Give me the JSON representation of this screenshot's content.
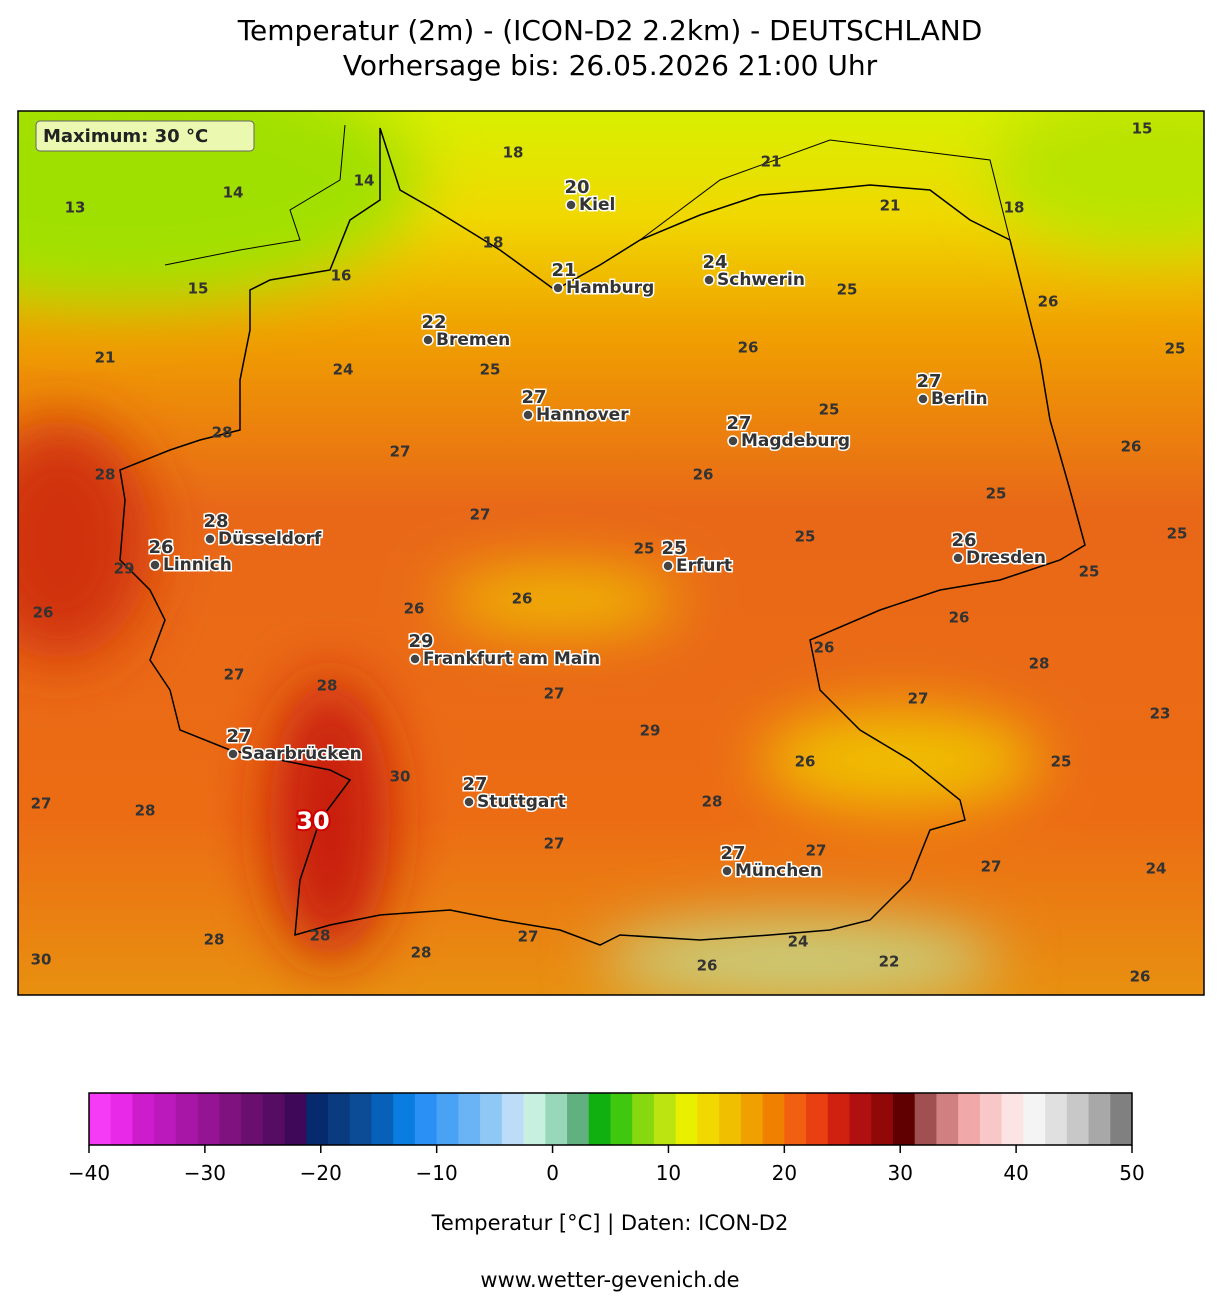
{
  "header": {
    "title": "Temperatur (2m) - (ICON-D2 2.2km) - DEUTSCHLAND",
    "subtitle": "Vorhersage bis: 26.05.2026 21:00 Uhr"
  },
  "maximum": {
    "label": "Maximum: 30 °C",
    "value": 30
  },
  "cities": [
    {
      "name": "Kiel",
      "value": 20
    },
    {
      "name": "Hamburg",
      "value": 21
    },
    {
      "name": "Schwerin",
      "value": 24
    },
    {
      "name": "Bremen",
      "value": 22
    },
    {
      "name": "Hannover",
      "value": 27
    },
    {
      "name": "Berlin",
      "value": 27
    },
    {
      "name": "Magdeburg",
      "value": 27
    },
    {
      "name": "Düsseldorf",
      "value": 28
    },
    {
      "name": "Linnich",
      "value": 26
    },
    {
      "name": "Erfurt",
      "value": 25
    },
    {
      "name": "Dresden",
      "value": 26
    },
    {
      "name": "Frankfurt am Main",
      "value": 29
    },
    {
      "name": "Saarbrücken",
      "value": 27
    },
    {
      "name": "Stuttgart",
      "value": 27
    },
    {
      "name": "München",
      "value": 27
    }
  ],
  "contour_labels": [
    15,
    21,
    18,
    14,
    14,
    13,
    18,
    21,
    18,
    16,
    15,
    25,
    26,
    21,
    26,
    25,
    24,
    25,
    25,
    28,
    27,
    26,
    28,
    26,
    25,
    27,
    25,
    25,
    25,
    29,
    25,
    26,
    26,
    26,
    26,
    26,
    28,
    27,
    28,
    27,
    27,
    23,
    29,
    26,
    25,
    30,
    27,
    28,
    28,
    27,
    27,
    27,
    24,
    28,
    28,
    27,
    24,
    28,
    30,
    26,
    22,
    26
  ],
  "colorbar": {
    "label": "Temperatur [°C] | Daten: ICON-D2",
    "lim": [
      -40,
      50
    ],
    "ticks": [
      {
        "value": -40,
        "label": "−40"
      },
      {
        "value": -30,
        "label": "−30"
      },
      {
        "value": -20,
        "label": "−20"
      },
      {
        "value": -10,
        "label": "−10"
      },
      0,
      10,
      20,
      30,
      40,
      50
    ],
    "colors": [
      "#f53bf5",
      "#e82ae8",
      "#cc1ccc",
      "#bb19bb",
      "#a816a8",
      "#941494",
      "#801280",
      "#6a0f70",
      "#550c62",
      "#400858",
      "#062a6e",
      "#0a3a80",
      "#0c4c96",
      "#0861b8",
      "#0a7ee0",
      "#2a90f5",
      "#4aa2f5",
      "#6ab4f5",
      "#90c8f5",
      "#bcdcf8",
      "#c8f0e0",
      "#98d8b8",
      "#60b080",
      "#10b010",
      "#40c810",
      "#88d810",
      "#bce410",
      "#e8f000",
      "#f0d800",
      "#f0c000",
      "#f0a000",
      "#f08000",
      "#f06010",
      "#e84010",
      "#d02010",
      "#b01010",
      "#900808",
      "#600000",
      "#a05050",
      "#d08080",
      "#f0a8a8",
      "#f8c8c8",
      "#fce4e4",
      "#f4f4f4",
      "#e0e0e0",
      "#c8c8c8",
      "#a8a8a8",
      "#808080"
    ]
  },
  "footer": "www.wetter-gevenich.de"
}
